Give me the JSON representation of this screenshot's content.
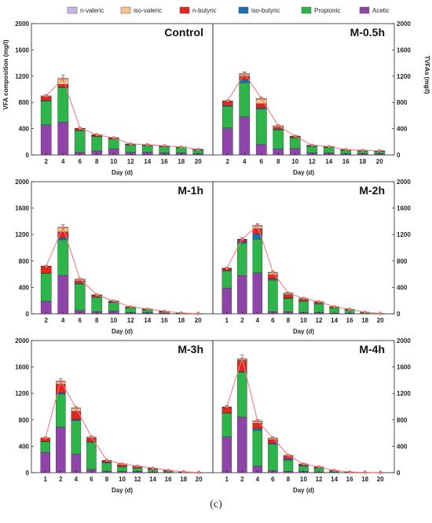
{
  "figure": {
    "caption": "(c)",
    "y_left_label": "VFA composition (mg/l)",
    "y_right_label": "TVFAs (mg/l)",
    "x_label": "Day (d)"
  },
  "legend": [
    {
      "name": "n-valeric",
      "color": "#c8b4e6"
    },
    {
      "name": "iso-valeric",
      "color": "#f8c48c"
    },
    {
      "name": "n-butyric",
      "color": "#e8251d"
    },
    {
      "name": "iso-butyric",
      "color": "#1a6fb4"
    },
    {
      "name": "Propionic",
      "color": "#2db54a"
    },
    {
      "name": "Acetic",
      "color": "#8e44a8"
    }
  ],
  "line_color": "#f07f7f",
  "chart_data": [
    {
      "type": "bar",
      "title": "Control",
      "xlabel": "Day (d)",
      "ylabel": "VFA composition (mg/l)",
      "ylabel_right": "",
      "ylim": [
        0,
        2000
      ],
      "yticks": [
        0,
        400,
        800,
        1200,
        1600,
        2000
      ],
      "categories": [
        "2",
        "4",
        "6",
        "8",
        "10",
        "12",
        "14",
        "16",
        "18",
        "20"
      ],
      "series": [
        {
          "name": "Acetic",
          "values": [
            460,
            500,
            40,
            60,
            90,
            40,
            40,
            30,
            30,
            20
          ]
        },
        {
          "name": "Propionic",
          "values": [
            360,
            520,
            330,
            220,
            150,
            110,
            100,
            95,
            80,
            55
          ]
        },
        {
          "name": "iso-butyric",
          "values": [
            10,
            15,
            8,
            5,
            4,
            3,
            3,
            2,
            2,
            2
          ]
        },
        {
          "name": "n-butyric",
          "values": [
            55,
            40,
            20,
            15,
            10,
            10,
            8,
            8,
            5,
            5
          ]
        },
        {
          "name": "iso-valeric",
          "values": [
            10,
            85,
            5,
            5,
            4,
            3,
            3,
            3,
            2,
            2
          ]
        },
        {
          "name": "n-valeric",
          "values": [
            5,
            5,
            3,
            3,
            2,
            2,
            2,
            2,
            2,
            1
          ]
        }
      ],
      "tvfa": [
        900,
        1165,
        406,
        308,
        260,
        168,
        156,
        140,
        121,
        85
      ],
      "error": [
        20,
        55,
        15,
        12,
        10,
        8,
        8,
        6,
        6,
        5
      ]
    },
    {
      "type": "bar",
      "title": "M-0.5h",
      "xlabel": "Day (d)",
      "ylabel": "",
      "ylabel_right": "TVFAs (mg/l)",
      "ylim": [
        0,
        2000
      ],
      "yticks": [
        0,
        400,
        800,
        1200,
        1600,
        2000
      ],
      "categories": [
        "2",
        "4",
        "6",
        "8",
        "10",
        "12",
        "14",
        "16",
        "18",
        "20"
      ],
      "series": [
        {
          "name": "Acetic",
          "values": [
            410,
            580,
            160,
            90,
            100,
            30,
            30,
            20,
            20,
            20
          ]
        },
        {
          "name": "Propionic",
          "values": [
            330,
            520,
            540,
            290,
            160,
            100,
            80,
            50,
            40,
            35
          ]
        },
        {
          "name": "iso-butyric",
          "values": [
            10,
            40,
            20,
            10,
            5,
            3,
            3,
            2,
            2,
            2
          ]
        },
        {
          "name": "n-butyric",
          "values": [
            60,
            60,
            60,
            30,
            15,
            10,
            10,
            5,
            5,
            4
          ]
        },
        {
          "name": "iso-valeric",
          "values": [
            10,
            30,
            70,
            20,
            5,
            4,
            3,
            3,
            2,
            2
          ]
        },
        {
          "name": "n-valeric",
          "values": [
            5,
            10,
            10,
            5,
            3,
            2,
            2,
            2,
            2,
            1
          ]
        }
      ],
      "tvfa": [
        825,
        1240,
        860,
        445,
        288,
        149,
        128,
        82,
        71,
        64
      ],
      "error": [
        15,
        25,
        20,
        12,
        8,
        6,
        6,
        5,
        5,
        4
      ]
    },
    {
      "type": "bar",
      "title": "M-1h",
      "xlabel": "Day (d)",
      "ylabel": "",
      "ylabel_right": "",
      "ylim": [
        0,
        2000
      ],
      "yticks": [
        0,
        400,
        800,
        1200,
        1600,
        2000
      ],
      "categories": [
        "2",
        "4",
        "6",
        "8",
        "10",
        "12",
        "14",
        "16",
        "18",
        "20"
      ],
      "series": [
        {
          "name": "Acetic",
          "values": [
            190,
            580,
            50,
            30,
            40,
            20,
            20,
            10,
            3,
            1
          ]
        },
        {
          "name": "Propionic",
          "values": [
            420,
            540,
            400,
            220,
            130,
            70,
            40,
            20,
            5,
            2
          ]
        },
        {
          "name": "iso-butyric",
          "values": [
            5,
            30,
            10,
            5,
            3,
            2,
            2,
            1,
            1,
            0
          ]
        },
        {
          "name": "n-butyric",
          "values": [
            100,
            90,
            40,
            25,
            15,
            10,
            8,
            5,
            2,
            1
          ]
        },
        {
          "name": "iso-valeric",
          "values": [
            5,
            60,
            20,
            5,
            5,
            3,
            2,
            2,
            1,
            0
          ]
        },
        {
          "name": "n-valeric",
          "values": [
            2,
            10,
            5,
            2,
            2,
            1,
            1,
            1,
            0,
            0
          ]
        }
      ],
      "tvfa": [
        722,
        1310,
        525,
        287,
        195,
        106,
        73,
        39,
        12,
        4
      ],
      "error": [
        10,
        40,
        15,
        10,
        8,
        5,
        5,
        3,
        2,
        1
      ]
    },
    {
      "type": "bar",
      "title": "M-2h",
      "xlabel": "Day (d)",
      "ylabel": "",
      "ylabel_right": "",
      "ylim": [
        0,
        2000
      ],
      "yticks": [
        0,
        400,
        800,
        1200,
        1600,
        2000
      ],
      "categories": [
        "1",
        "2",
        "4",
        "6",
        "8",
        "10",
        "12",
        "14",
        "16",
        "18",
        "20"
      ],
      "series": [
        {
          "name": "Acetic",
          "values": [
            390,
            580,
            620,
            30,
            30,
            20,
            20,
            10,
            10,
            5,
            1
          ]
        },
        {
          "name": "Propionic",
          "values": [
            260,
            490,
            510,
            480,
            200,
            170,
            130,
            80,
            50,
            15,
            3
          ]
        },
        {
          "name": "iso-butyric",
          "values": [
            5,
            20,
            80,
            20,
            10,
            5,
            5,
            3,
            2,
            1,
            0
          ]
        },
        {
          "name": "n-butyric",
          "values": [
            30,
            30,
            80,
            60,
            50,
            25,
            20,
            10,
            5,
            2,
            1
          ]
        },
        {
          "name": "iso-valeric",
          "values": [
            5,
            5,
            40,
            30,
            20,
            10,
            5,
            3,
            2,
            1,
            0
          ]
        },
        {
          "name": "n-valeric",
          "values": [
            2,
            5,
            10,
            10,
            5,
            3,
            2,
            2,
            1,
            1,
            0
          ]
        }
      ],
      "tvfa": [
        690,
        1130,
        1340,
        630,
        315,
        233,
        182,
        108,
        70,
        25,
        5
      ],
      "error": [
        12,
        25,
        25,
        15,
        10,
        8,
        6,
        5,
        4,
        2,
        1
      ]
    },
    {
      "type": "bar",
      "title": "M-3h",
      "xlabel": "Day (d)",
      "ylabel": "",
      "ylabel_right": "",
      "ylim": [
        0,
        2000
      ],
      "yticks": [
        0,
        400,
        800,
        1200,
        1600,
        2000
      ],
      "categories": [
        "1",
        "2",
        "4",
        "6",
        "8",
        "10",
        "12",
        "14",
        "16",
        "18",
        "20"
      ],
      "series": [
        {
          "name": "Acetic",
          "values": [
            310,
            690,
            280,
            50,
            20,
            20,
            20,
            10,
            5,
            2,
            1
          ]
        },
        {
          "name": "Propionic",
          "values": [
            160,
            500,
            510,
            410,
            130,
            70,
            50,
            40,
            20,
            8,
            2
          ]
        },
        {
          "name": "iso-butyric",
          "values": [
            5,
            20,
            20,
            10,
            5,
            5,
            3,
            2,
            2,
            1,
            0
          ]
        },
        {
          "name": "n-butyric",
          "values": [
            40,
            130,
            120,
            50,
            20,
            20,
            15,
            10,
            5,
            2,
            1
          ]
        },
        {
          "name": "iso-valeric",
          "values": [
            10,
            40,
            45,
            15,
            10,
            15,
            10,
            5,
            3,
            1,
            0
          ]
        },
        {
          "name": "n-valeric",
          "values": [
            2,
            5,
            5,
            5,
            3,
            3,
            2,
            2,
            1,
            0,
            0
          ]
        }
      ],
      "tvfa": [
        527,
        1385,
        980,
        540,
        188,
        133,
        100,
        69,
        36,
        14,
        4
      ],
      "error": [
        10,
        35,
        20,
        15,
        8,
        6,
        5,
        4,
        3,
        2,
        1
      ]
    },
    {
      "type": "bar",
      "title": "M-4h",
      "xlabel": "Day (d)",
      "ylabel": "",
      "ylabel_right": "",
      "ylim": [
        0,
        2000
      ],
      "yticks": [
        0,
        400,
        800,
        1200,
        1600,
        2000
      ],
      "categories": [
        "1",
        "2",
        "4",
        "6",
        "8",
        "10",
        "12",
        "14",
        "16",
        "18",
        "20"
      ],
      "series": [
        {
          "name": "Acetic",
          "values": [
            540,
            840,
            100,
            30,
            20,
            20,
            10,
            5,
            2,
            1,
            1
          ]
        },
        {
          "name": "Propionic",
          "values": [
            360,
            680,
            540,
            400,
            170,
            80,
            60,
            20,
            5,
            2,
            1
          ]
        },
        {
          "name": "iso-butyric",
          "values": [
            5,
            10,
            30,
            20,
            20,
            5,
            3,
            2,
            1,
            0,
            0
          ]
        },
        {
          "name": "n-butyric",
          "values": [
            80,
            170,
            80,
            50,
            40,
            20,
            10,
            5,
            2,
            1,
            0
          ]
        },
        {
          "name": "iso-valeric",
          "values": [
            10,
            20,
            30,
            20,
            10,
            5,
            3,
            2,
            1,
            0,
            0
          ]
        },
        {
          "name": "n-valeric",
          "values": [
            2,
            5,
            5,
            5,
            3,
            2,
            2,
            1,
            0,
            0,
            0
          ]
        }
      ],
      "tvfa": [
        1000,
        1725,
        785,
        525,
        263,
        132,
        88,
        35,
        11,
        4,
        2
      ],
      "error": [
        15,
        60,
        20,
        15,
        12,
        6,
        5,
        3,
        2,
        1,
        1
      ]
    }
  ]
}
